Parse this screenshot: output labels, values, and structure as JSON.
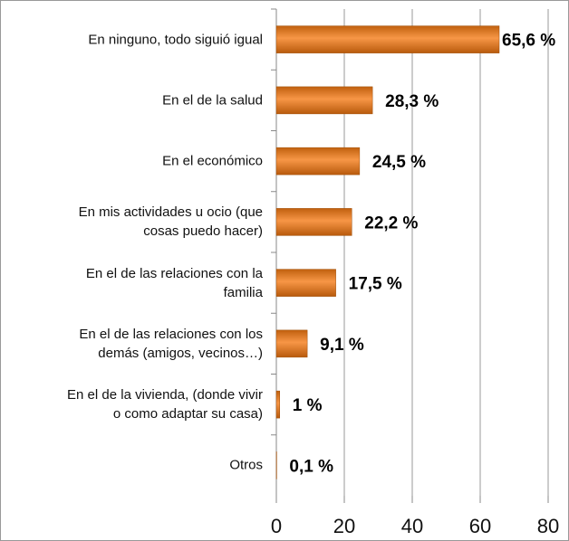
{
  "chart_data": {
    "type": "barh",
    "categories": [
      "En ninguno, todo siguió igual",
      "En el de la salud",
      "En el económico",
      "En mis actividades u ocio (que\ncosas puedo hacer)",
      "En el de las relaciones con la\nfamilia",
      "En el de las relaciones con los\ndemás (amigos, vecinos…)",
      "En el de la vivienda, (donde vivir\no como adaptar su casa)",
      "Otros"
    ],
    "values": [
      65.6,
      28.3,
      24.5,
      22.2,
      17.5,
      9.1,
      1,
      0.1
    ],
    "value_labels": [
      "65,6 %",
      "28,3 %",
      "24,5 %",
      "22,2 %",
      "17,5 %",
      "9,1 %",
      "1 %",
      "0,1 %"
    ],
    "color": "#f79646",
    "xlim": [
      0,
      80
    ],
    "xticks": [
      0,
      20,
      40,
      60,
      80
    ],
    "grid": true
  }
}
